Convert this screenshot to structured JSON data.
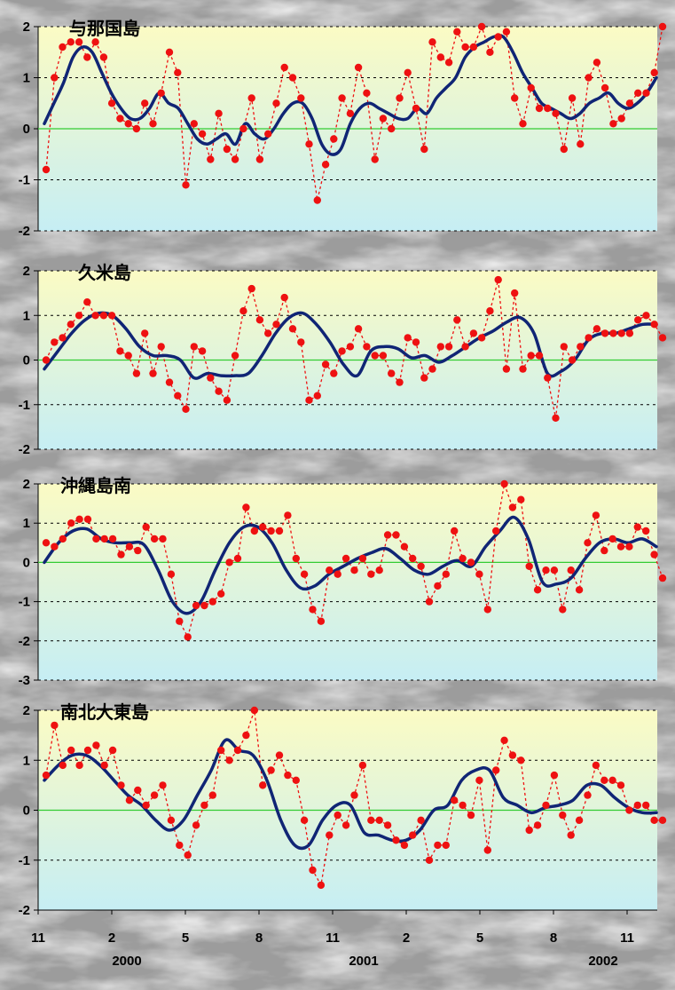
{
  "chart_data": {
    "type": "line",
    "layout": "stacked-panels",
    "x": {
      "tick_labels": [
        "11",
        "2",
        "5",
        "8",
        "11",
        "2",
        "5",
        "8",
        "11"
      ],
      "year_labels": [
        "2000",
        "2001",
        "2002"
      ],
      "range": [
        "1999-11",
        "2002-12"
      ]
    },
    "series_style": {
      "points": {
        "color": "#ee1111",
        "marker": "dot",
        "line": "dashed"
      },
      "smoothed": {
        "color": "#102575",
        "line": "solid-thick"
      }
    },
    "zero_line_color": "#33cc33",
    "panel_background": {
      "top": "#fbfbc4",
      "bottom": "#c6eef4"
    },
    "panels": [
      {
        "title": "与那国島",
        "yticks": [
          "-2",
          "-1",
          "0",
          "1",
          "2"
        ],
        "ylim": [
          -2,
          2
        ],
        "points": [
          -0.8,
          1.0,
          1.6,
          1.7,
          1.7,
          1.4,
          1.7,
          1.4,
          0.5,
          0.2,
          0.1,
          0.0,
          0.5,
          0.1,
          0.7,
          1.5,
          1.1,
          -1.1,
          0.1,
          -0.1,
          -0.6,
          0.3,
          -0.4,
          -0.6,
          0.0,
          0.6,
          -0.6,
          -0.1,
          0.5,
          1.2,
          1.0,
          0.6,
          -0.3,
          -1.4,
          -0.7,
          -0.2,
          0.6,
          0.3,
          1.2,
          0.7,
          -0.6,
          0.2,
          0.0,
          0.6,
          1.1,
          0.4,
          -0.4,
          1.7,
          1.4,
          1.3,
          1.9,
          1.6,
          1.6,
          2.0,
          1.5,
          1.8,
          1.9,
          0.6,
          0.1,
          0.8,
          0.4,
          0.4,
          0.3,
          -0.4,
          0.6,
          -0.3,
          1.0,
          1.3,
          0.8,
          0.1,
          0.2,
          0.5,
          0.7,
          0.7,
          1.1,
          2.0
        ],
        "smooth": [
          0.1,
          0.5,
          0.9,
          1.4,
          1.6,
          1.5,
          1.1,
          0.7,
          0.4,
          0.2,
          0.2,
          0.4,
          0.7,
          0.5,
          0.4,
          0.1,
          -0.2,
          -0.3,
          -0.2,
          -0.1,
          -0.3,
          0.1,
          -0.1,
          -0.2,
          0.0,
          0.3,
          0.5,
          0.5,
          0.2,
          -0.3,
          -0.5,
          -0.4,
          0.1,
          0.4,
          0.5,
          0.4,
          0.3,
          0.2,
          0.2,
          0.4,
          0.3,
          0.6,
          0.8,
          1.0,
          1.4,
          1.6,
          1.7,
          1.8,
          1.8,
          1.5,
          1.1,
          0.8,
          0.5,
          0.4,
          0.3,
          0.2,
          0.3,
          0.5,
          0.6,
          0.7,
          0.5,
          0.4,
          0.5,
          0.7,
          1.0
        ]
      },
      {
        "title": "久米島",
        "yticks": [
          "-2",
          "-1",
          "0",
          "1",
          "2"
        ],
        "ylim": [
          -2,
          2
        ],
        "points": [
          0.0,
          0.4,
          0.5,
          0.8,
          1.0,
          1.3,
          1.0,
          1.0,
          1.0,
          0.2,
          0.1,
          -0.3,
          0.6,
          -0.3,
          0.3,
          -0.5,
          -0.8,
          -1.1,
          0.3,
          0.2,
          -0.4,
          -0.7,
          -0.9,
          0.1,
          1.1,
          1.6,
          0.9,
          0.6,
          0.8,
          1.4,
          0.7,
          0.4,
          -0.9,
          -0.8,
          -0.1,
          -0.3,
          0.2,
          0.3,
          0.7,
          0.3,
          0.1,
          0.1,
          -0.3,
          -0.5,
          0.5,
          0.4,
          -0.4,
          -0.2,
          0.3,
          0.3,
          0.9,
          0.3,
          0.6,
          0.5,
          1.1,
          1.8,
          -0.2,
          1.5,
          -0.2,
          0.1,
          0.1,
          -0.4,
          -1.3,
          0.3,
          0.0,
          0.3,
          0.5,
          0.7,
          0.6,
          0.6,
          0.6,
          0.6,
          0.9,
          1.0,
          0.8,
          0.5
        ],
        "smooth": [
          -0.2,
          0.2,
          0.6,
          0.9,
          1.05,
          1.0,
          0.7,
          0.3,
          0.1,
          0.1,
          0.0,
          -0.4,
          -0.3,
          -0.35,
          -0.35,
          -0.3,
          0.1,
          0.6,
          0.95,
          1.05,
          0.8,
          0.4,
          -0.1,
          -0.35,
          0.2,
          0.3,
          0.25,
          0.05,
          0.1,
          -0.05,
          0.1,
          0.3,
          0.5,
          0.65,
          0.85,
          0.95,
          0.6,
          -0.3,
          -0.25,
          0.0,
          0.45,
          0.6,
          0.6,
          0.7,
          0.8,
          0.8
        ]
      },
      {
        "title": "沖縄島南",
        "yticks": [
          "-3",
          "-2",
          "-1",
          "0",
          "1",
          "2"
        ],
        "ylim": [
          -3,
          2
        ],
        "points": [
          0.5,
          0.4,
          0.6,
          1.0,
          1.1,
          1.1,
          0.6,
          0.6,
          0.6,
          0.2,
          0.4,
          0.3,
          0.9,
          0.6,
          0.6,
          -0.3,
          -1.5,
          -1.9,
          -1.1,
          -1.1,
          -1.0,
          -0.8,
          0.0,
          0.1,
          1.4,
          0.8,
          0.9,
          0.8,
          0.8,
          1.2,
          0.1,
          -0.3,
          -1.2,
          -1.5,
          -0.2,
          -0.3,
          0.1,
          -0.2,
          0.1,
          -0.3,
          -0.2,
          0.7,
          0.7,
          0.4,
          0.1,
          -0.1,
          -1.0,
          -0.6,
          -0.3,
          0.8,
          0.1,
          0.0,
          -0.3,
          -1.2,
          0.8,
          2.0,
          1.4,
          1.6,
          -0.1,
          -0.7,
          -0.2,
          -0.2,
          -1.2,
          -0.2,
          -0.7,
          0.5,
          1.2,
          0.3,
          0.6,
          0.4,
          0.4,
          0.9,
          0.8,
          0.2,
          -0.4
        ],
        "smooth": [
          0.0,
          0.5,
          0.8,
          0.85,
          0.6,
          0.5,
          0.5,
          0.45,
          -0.2,
          -1.0,
          -1.3,
          -1.0,
          -0.2,
          0.5,
          0.9,
          0.9,
          0.5,
          -0.2,
          -0.65,
          -0.6,
          -0.3,
          -0.1,
          0.1,
          0.25,
          0.35,
          0.1,
          -0.2,
          -0.3,
          -0.1,
          0.05,
          -0.1,
          0.4,
          0.8,
          1.15,
          0.6,
          -0.5,
          -0.55,
          -0.4,
          0.1,
          0.5,
          0.6,
          0.5,
          0.6,
          0.4
        ]
      },
      {
        "title": "南北大東島",
        "yticks": [
          "-2",
          "-1",
          "0",
          "1",
          "2"
        ],
        "ylim": [
          -2,
          2
        ],
        "points": [
          0.7,
          1.7,
          0.9,
          1.2,
          0.9,
          1.2,
          1.3,
          0.9,
          1.2,
          0.5,
          0.2,
          0.4,
          0.1,
          0.3,
          0.5,
          -0.2,
          -0.7,
          -0.9,
          -0.3,
          0.1,
          0.3,
          1.2,
          1.0,
          1.2,
          1.5,
          2.0,
          0.5,
          0.8,
          1.1,
          0.7,
          0.6,
          -0.2,
          -1.2,
          -1.5,
          -0.5,
          -0.1,
          -0.3,
          0.3,
          0.9,
          -0.2,
          -0.2,
          -0.3,
          -0.6,
          -0.7,
          -0.5,
          -0.2,
          -1.0,
          -0.7,
          -0.7,
          0.2,
          0.1,
          -0.1,
          0.6,
          -0.8,
          0.8,
          1.4,
          1.1,
          1.0,
          -0.4,
          -0.3,
          0.1,
          0.7,
          -0.1,
          -0.5,
          -0.2,
          0.3,
          0.9,
          0.6,
          0.6,
          0.5,
          0.0,
          0.1,
          0.1,
          -0.2,
          -0.2
        ],
        "smooth": [
          0.6,
          0.9,
          1.1,
          1.1,
          0.9,
          0.6,
          0.3,
          0.1,
          -0.2,
          -0.4,
          -0.2,
          0.3,
          0.8,
          1.4,
          1.2,
          1.1,
          0.6,
          -0.2,
          -0.7,
          -0.7,
          -0.2,
          0.1,
          0.1,
          -0.45,
          -0.5,
          -0.6,
          -0.6,
          -0.4,
          0.0,
          0.1,
          0.6,
          0.8,
          0.8,
          0.25,
          0.1,
          -0.05,
          0.05,
          0.1,
          0.2,
          0.5,
          0.5,
          0.25,
          0.05,
          -0.05,
          -0.05
        ]
      }
    ]
  }
}
